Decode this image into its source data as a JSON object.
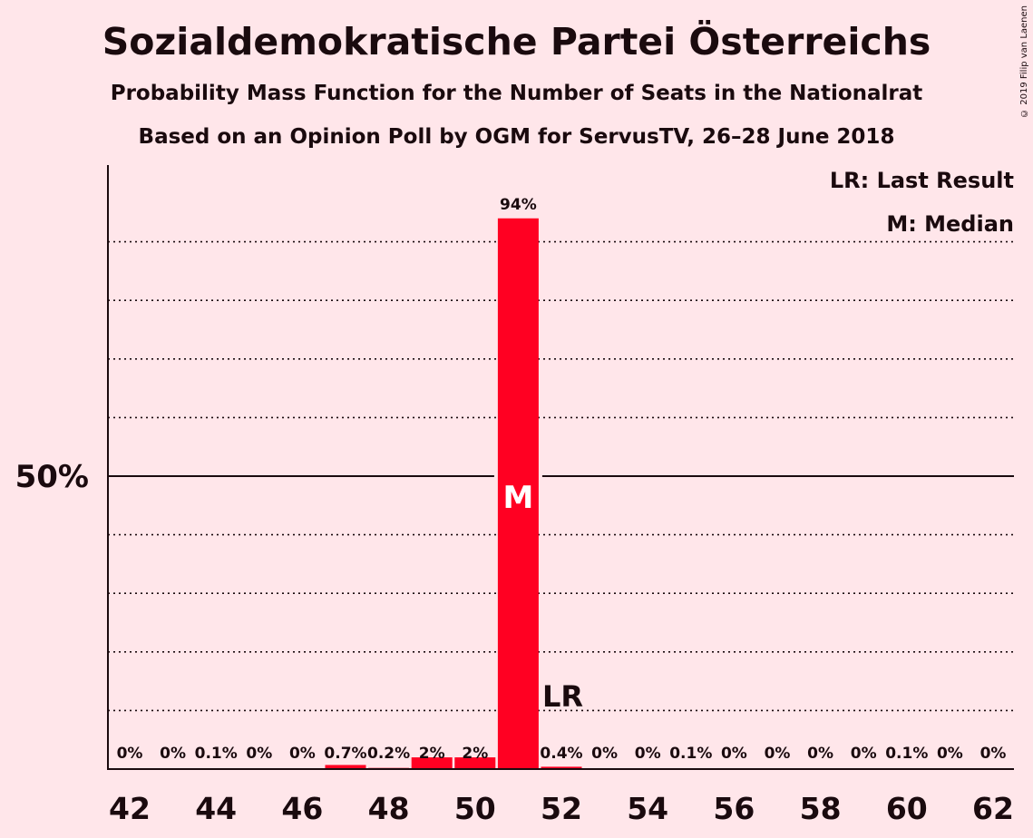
{
  "title": "Sozialdemokratische Partei Österreichs",
  "subtitle": "Probability Mass Function for the Number of Seats in the Nationalrat",
  "subtitle2": "Based on an Opinion Poll by OGM for ServusTV, 26–28 June 2018",
  "copyright": "© 2019 Filip van Laenen",
  "legend": {
    "last_result": "LR: Last Result",
    "median": "M: Median"
  },
  "colors": {
    "background": "#ffe6ea",
    "bar": "#ff0022",
    "text": "#1a0a0e"
  },
  "chart_data": {
    "type": "bar",
    "categories": [
      42,
      43,
      44,
      45,
      46,
      47,
      48,
      49,
      50,
      51,
      52,
      53,
      54,
      55,
      56,
      57,
      58,
      59,
      60,
      61,
      62
    ],
    "values": [
      0,
      0,
      0.1,
      0,
      0,
      0.7,
      0.2,
      2,
      2,
      94,
      0.4,
      0,
      0,
      0.1,
      0,
      0,
      0,
      0,
      0.1,
      0,
      0
    ],
    "value_labels": [
      "0%",
      "0%",
      "0.1%",
      "0%",
      "0%",
      "0.7%",
      "0.2%",
      "2%",
      "2%",
      "94%",
      "0.4%",
      "0%",
      "0%",
      "0.1%",
      "0%",
      "0%",
      "0%",
      "0%",
      "0.1%",
      "0%",
      "0%"
    ],
    "x_tick_labels": [
      "42",
      "44",
      "46",
      "48",
      "50",
      "52",
      "54",
      "56",
      "58",
      "60",
      "62"
    ],
    "y_tick_label": "50%",
    "ylim": [
      0,
      100
    ],
    "y_major_line": 50,
    "y_minor_lines": [
      10,
      20,
      30,
      40,
      60,
      70,
      80,
      90
    ],
    "median_seat": 51,
    "median_marker": "M",
    "last_result_seat": 52,
    "last_result_marker": "LR",
    "legend_position": "top-right",
    "grid": true
  }
}
